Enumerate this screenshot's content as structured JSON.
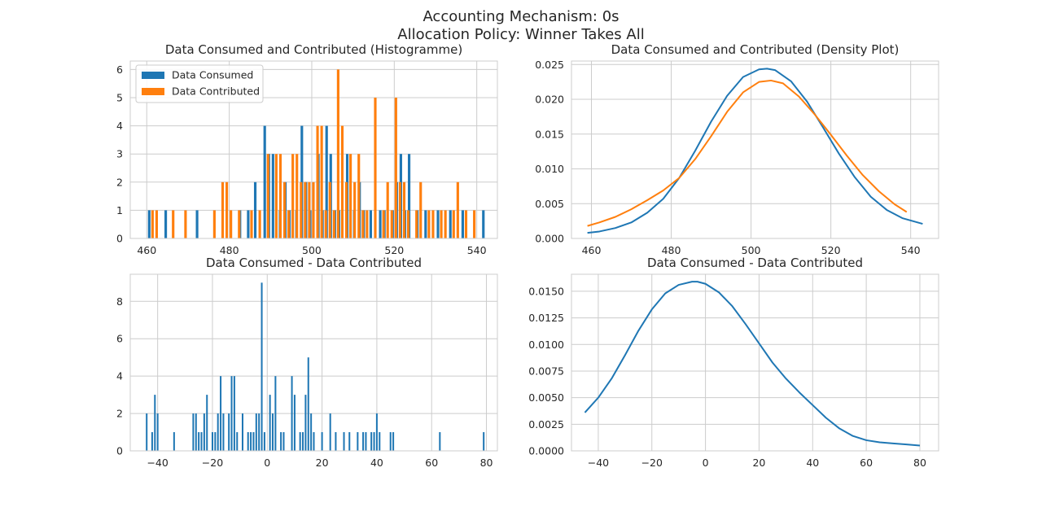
{
  "figure": {
    "title_line1": "Accounting Mechanism: 0s",
    "title_line2": "Allocation Policy: Winner Takes All"
  },
  "colors": {
    "consumed": "#1f77b4",
    "contributed": "#ff7f0e",
    "grid": "#cccccc",
    "frame": "#cccccc"
  },
  "chart_data": [
    {
      "type": "bar",
      "title": "Data Consumed and Contributed (Histogramme)",
      "xlim": [
        456,
        545
      ],
      "ylim": [
        0,
        6.3
      ],
      "xticks": [
        460,
        480,
        500,
        520,
        540
      ],
      "yticks": [
        0,
        1,
        2,
        3,
        4,
        5,
        6
      ],
      "legend": {
        "placement": "upper-left",
        "entries": [
          "Data Consumed",
          "Data Contributed"
        ]
      },
      "bar_width": 0.62,
      "series": [
        {
          "name": "Data Consumed",
          "color": "#1f77b4",
          "x": [
            460.6,
            464.6,
            472.2,
            482.6,
            484.6,
            486.3,
            488.6,
            489.6,
            490.6,
            492.3,
            493.6,
            494.6,
            496.3,
            497.6,
            498.6,
            499.6,
            501.6,
            502.6,
            503.6,
            504.6,
            505.6,
            506.6,
            508.6,
            510.3,
            511.6,
            512.6,
            514.3,
            516.6,
            517.6,
            519.6,
            520.6,
            521.6,
            522.6,
            523.6,
            525.6,
            527.6,
            530.6,
            533.6,
            536.6,
            541.6
          ],
          "y": [
            1,
            1,
            1,
            1,
            1,
            2,
            4,
            3,
            3,
            1,
            2,
            1,
            1,
            4,
            2,
            1,
            3,
            1,
            4,
            3,
            1,
            1,
            3,
            1,
            2,
            1,
            1,
            1,
            1,
            1,
            2,
            3,
            1,
            3,
            1,
            1,
            1,
            1,
            1,
            1
          ]
        },
        {
          "name": "Data Contributed",
          "color": "#ff7f0e",
          "x": [
            461.4,
            462.4,
            466.4,
            469.4,
            476.4,
            478.4,
            479.4,
            480.4,
            482.4,
            485.4,
            487.4,
            489.4,
            491.4,
            492.4,
            493.4,
            494.4,
            495.4,
            496.4,
            497.4,
            498.4,
            499.4,
            500.4,
            501.4,
            502.4,
            503.4,
            504.4,
            505.4,
            506.4,
            507.4,
            508.4,
            509.4,
            510.4,
            511.4,
            512.4,
            513.4,
            515.4,
            517.4,
            518.4,
            519.4,
            520.4,
            521.4,
            522.4,
            523.4,
            525.4,
            526.4,
            528.4,
            529.4,
            531.4,
            532.4,
            534.4,
            535.4,
            537.4,
            539.4
          ],
          "y": [
            1,
            1,
            1,
            1,
            1,
            2,
            2,
            1,
            1,
            1,
            1,
            3,
            3,
            3,
            2,
            1,
            3,
            3,
            2,
            2,
            2,
            2,
            4,
            4,
            1,
            2,
            1,
            6,
            4,
            2,
            3,
            2,
            3,
            1,
            1,
            5,
            1,
            2,
            1,
            5,
            2,
            2,
            1,
            1,
            2,
            1,
            1,
            1,
            1,
            1,
            2,
            1,
            1
          ]
        }
      ]
    },
    {
      "type": "line",
      "title": "Data Consumed and Contributed (Density Plot)",
      "xlim": [
        455,
        547
      ],
      "ylim": [
        0,
        0.0255
      ],
      "xticks": [
        460,
        480,
        500,
        520,
        540
      ],
      "yticks": [
        0,
        0.005,
        0.01,
        0.015,
        0.02,
        0.025
      ],
      "ytick_labels": [
        "0.000",
        "0.005",
        "0.010",
        "0.015",
        "0.020",
        "0.025"
      ],
      "series": [
        {
          "name": "Data Consumed",
          "color": "#1f77b4",
          "x": [
            459,
            462,
            466,
            470,
            474,
            478,
            482,
            486,
            490,
            494,
            498,
            502,
            504,
            506,
            510,
            514,
            518,
            522,
            526,
            530,
            534,
            538,
            543
          ],
          "y": [
            0.0008,
            0.001,
            0.0015,
            0.0023,
            0.0037,
            0.0057,
            0.0087,
            0.0126,
            0.0168,
            0.0205,
            0.0232,
            0.0243,
            0.0244,
            0.0242,
            0.0226,
            0.0197,
            0.016,
            0.0122,
            0.0088,
            0.006,
            0.0041,
            0.0029,
            0.0021
          ]
        },
        {
          "name": "Data Contributed",
          "color": "#ff7f0e",
          "x": [
            459,
            462,
            466,
            470,
            474,
            478,
            482,
            486,
            490,
            494,
            498,
            502,
            505,
            508,
            512,
            516,
            520,
            524,
            528,
            532,
            536,
            539
          ],
          "y": [
            0.0018,
            0.0023,
            0.0031,
            0.0042,
            0.0055,
            0.0069,
            0.0087,
            0.0114,
            0.0147,
            0.0182,
            0.021,
            0.0225,
            0.0227,
            0.0223,
            0.0204,
            0.0178,
            0.0149,
            0.0119,
            0.0091,
            0.0068,
            0.0049,
            0.0038
          ]
        }
      ]
    },
    {
      "type": "bar",
      "title": "Data Consumed - Data Contributed",
      "xlim": [
        -50,
        84
      ],
      "ylim": [
        0,
        9.45
      ],
      "xticks": [
        -40,
        -20,
        0,
        20,
        40,
        60,
        80
      ],
      "xtick_labels": [
        "−40",
        "−20",
        "0",
        "20",
        "40",
        "60",
        "80"
      ],
      "yticks": [
        0,
        2,
        4,
        6,
        8
      ],
      "bar_width": 0.6,
      "series": [
        {
          "name": "",
          "color": "#1f77b4",
          "x": [
            -44,
            -42,
            -41,
            -40,
            -34,
            -27,
            -26,
            -25,
            -24,
            -23,
            -22,
            -20,
            -19,
            -18,
            -17,
            -16,
            -14,
            -13,
            -12,
            -11,
            -9,
            -7,
            -6,
            -5,
            -4,
            -3,
            -2,
            -1,
            1,
            2,
            3,
            5,
            6,
            9,
            10,
            12,
            13,
            14,
            15,
            16,
            17,
            20,
            23,
            25,
            28,
            30,
            33,
            35,
            36,
            38,
            39,
            40,
            41,
            45,
            46,
            63,
            79
          ],
          "y": [
            2,
            1,
            3,
            2,
            1,
            2,
            2,
            1,
            1,
            2,
            3,
            1,
            1,
            2,
            4,
            2,
            2,
            4,
            4,
            1,
            2,
            1,
            1,
            1,
            2,
            2,
            9,
            1,
            3,
            2,
            4,
            1,
            1,
            4,
            3,
            1,
            1,
            3,
            5,
            2,
            1,
            1,
            2,
            1,
            1,
            1,
            1,
            1,
            1,
            1,
            1,
            2,
            1,
            1,
            1,
            1,
            1
          ]
        }
      ]
    },
    {
      "type": "line",
      "title": "Data Consumed - Data Contributed",
      "xlim": [
        -50,
        87
      ],
      "ylim": [
        0,
        0.0166
      ],
      "xticks": [
        -40,
        -20,
        0,
        20,
        40,
        60,
        80
      ],
      "xtick_labels": [
        "−40",
        "−20",
        "0",
        "20",
        "40",
        "60",
        "80"
      ],
      "yticks": [
        0,
        0.0025,
        0.005,
        0.0075,
        0.01,
        0.0125,
        0.015
      ],
      "ytick_labels": [
        "0.0000",
        "0.0025",
        "0.0050",
        "0.0075",
        "0.0100",
        "0.0125",
        "0.0150"
      ],
      "series": [
        {
          "name": "",
          "color": "#1f77b4",
          "x": [
            -45,
            -40,
            -35,
            -30,
            -25,
            -20,
            -15,
            -10,
            -5,
            -3,
            0,
            5,
            10,
            15,
            20,
            25,
            30,
            35,
            40,
            45,
            50,
            55,
            60,
            65,
            70,
            75,
            80
          ],
          "y": [
            0.0036,
            0.005,
            0.0068,
            0.009,
            0.0113,
            0.0133,
            0.0148,
            0.0156,
            0.0159,
            0.0159,
            0.0157,
            0.0149,
            0.0136,
            0.0119,
            0.0101,
            0.0083,
            0.0068,
            0.0055,
            0.0043,
            0.0031,
            0.0021,
            0.0014,
            0.001,
            0.0008,
            0.0007,
            0.0006,
            0.0005
          ]
        }
      ]
    }
  ]
}
